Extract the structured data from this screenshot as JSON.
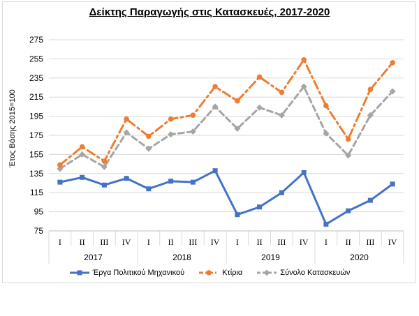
{
  "chart_data": {
    "type": "line",
    "title": "Δείκτης Παραγωγής στις Κατασκευές, 2017-2020",
    "ylabel": "Έτος Βάσης 2015=100",
    "ylim": [
      75,
      275
    ],
    "yticks": [
      75,
      95,
      115,
      135,
      155,
      175,
      195,
      215,
      235,
      255,
      275
    ],
    "grid": "horizontal",
    "legend_position": "bottom",
    "quarters": [
      "I",
      "II",
      "III",
      "IV",
      "I",
      "II",
      "III",
      "IV",
      "I",
      "II",
      "III",
      "IV",
      "I",
      "II",
      "III",
      "IV"
    ],
    "years": [
      "2017",
      "2018",
      "2019",
      "2020"
    ],
    "series": [
      {
        "name": "Έργα Πολιτικού Μηχανικού",
        "color": "#4472c4",
        "style": "solid",
        "marker": "square",
        "values": [
          126,
          131,
          123,
          130,
          119,
          127,
          126,
          138,
          92,
          100,
          115,
          136,
          82,
          96,
          107,
          124
        ]
      },
      {
        "name": "Κτίρια",
        "color": "#ed7d31",
        "style": "dashdot",
        "marker": "circle",
        "values": [
          144,
          163,
          148,
          192,
          174,
          192,
          196,
          226,
          211,
          236,
          220,
          254,
          206,
          171,
          223,
          251
        ]
      },
      {
        "name": "Σύνολο Κατασκευών",
        "color": "#a5a5a5",
        "style": "dashed",
        "marker": "diamond",
        "values": [
          140,
          155,
          142,
          178,
          161,
          176,
          179,
          205,
          182,
          204,
          196,
          226,
          177,
          154,
          196,
          221
        ]
      }
    ]
  }
}
